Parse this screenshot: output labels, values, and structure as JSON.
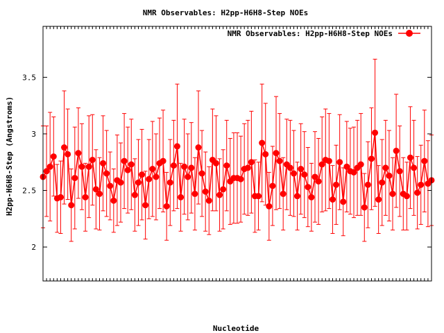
{
  "chart_data": {
    "type": "line",
    "title": "NMR Observables: H2pp-H6H8-Step NOEs",
    "xlabel": "Nucleotide",
    "ylabel": "H2pp-H6H8-Step (Angstroms)",
    "ylim": [
      1.7,
      3.95
    ],
    "yticks": [
      2,
      2.5,
      3,
      3.5
    ],
    "grid": false,
    "legend_position": "top-right",
    "colors": {
      "series": "#ff0000",
      "axis": "#000000"
    },
    "series": [
      {
        "name": "NMR Observables: H2pp-H6H8-Step NOEs",
        "values": [
          2.62,
          2.67,
          2.71,
          2.8,
          2.43,
          2.44,
          2.88,
          2.82,
          2.37,
          2.61,
          2.83,
          2.71,
          2.44,
          2.71,
          2.77,
          2.51,
          2.47,
          2.74,
          2.65,
          2.54,
          2.41,
          2.59,
          2.57,
          2.76,
          2.68,
          2.73,
          2.46,
          2.57,
          2.64,
          2.37,
          2.6,
          2.69,
          2.62,
          2.74,
          2.76,
          2.36,
          2.57,
          2.72,
          2.89,
          2.44,
          2.71,
          2.62,
          2.7,
          2.47,
          2.88,
          2.65,
          2.49,
          2.41,
          2.77,
          2.74,
          2.46,
          2.51,
          2.72,
          2.58,
          2.61,
          2.61,
          2.6,
          2.69,
          2.7,
          2.75,
          2.45,
          2.45,
          2.92,
          2.82,
          2.36,
          2.54,
          2.83,
          2.76,
          2.47,
          2.73,
          2.7,
          2.65,
          2.45,
          2.69,
          2.64,
          2.53,
          2.44,
          2.62,
          2.58,
          2.73,
          2.77,
          2.76,
          2.42,
          2.55,
          2.75,
          2.4,
          2.71,
          2.67,
          2.66,
          2.7,
          2.73,
          2.35,
          2.55,
          2.78,
          3.01,
          2.42,
          2.57,
          2.7,
          2.63,
          2.47,
          2.85,
          2.67,
          2.47,
          2.45,
          2.79,
          2.7,
          2.48,
          2.55,
          2.76,
          2.56,
          2.59
        ],
        "errors": [
          0.45,
          0.4,
          0.48,
          0.35,
          0.3,
          0.32,
          0.5,
          0.4,
          0.32,
          0.45,
          0.4,
          0.38,
          0.3,
          0.45,
          0.4,
          0.35,
          0.32,
          0.42,
          0.38,
          0.3,
          0.28,
          0.4,
          0.35,
          0.42,
          0.38,
          0.4,
          0.32,
          0.38,
          0.4,
          0.3,
          0.35,
          0.42,
          0.38,
          0.4,
          0.45,
          0.3,
          0.38,
          0.4,
          0.55,
          0.3,
          0.42,
          0.38,
          0.4,
          0.32,
          0.5,
          0.38,
          0.35,
          0.3,
          0.45,
          0.42,
          0.32,
          0.35,
          0.4,
          0.38,
          0.4,
          0.4,
          0.38,
          0.4,
          0.42,
          0.45,
          0.32,
          0.3,
          0.52,
          0.45,
          0.3,
          0.35,
          0.5,
          0.42,
          0.32,
          0.4,
          0.42,
          0.38,
          0.3,
          0.4,
          0.38,
          0.35,
          0.3,
          0.4,
          0.38,
          0.42,
          0.45,
          0.42,
          0.3,
          0.35,
          0.42,
          0.3,
          0.4,
          0.38,
          0.4,
          0.42,
          0.45,
          0.3,
          0.38,
          0.45,
          0.65,
          0.3,
          0.38,
          0.42,
          0.4,
          0.32,
          0.5,
          0.4,
          0.32,
          0.3,
          0.45,
          0.42,
          0.32,
          0.35,
          0.45,
          0.38,
          0.4
        ]
      }
    ]
  }
}
